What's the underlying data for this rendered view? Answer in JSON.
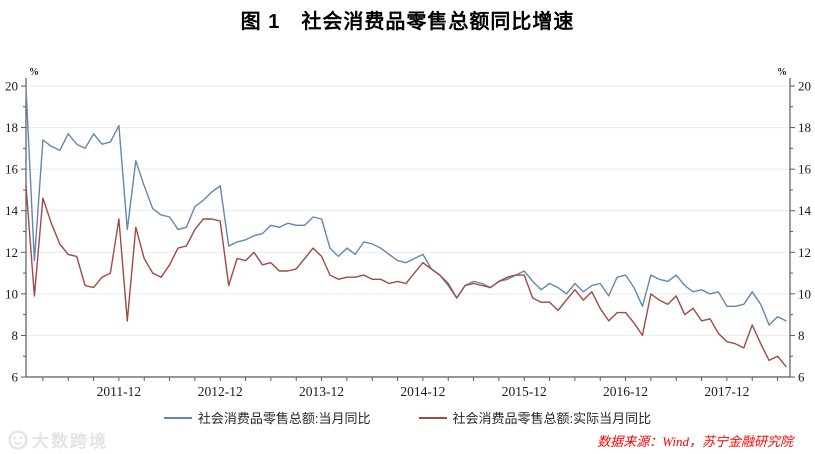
{
  "title": "图 1　社会消费品零售总额同比增速",
  "source_note": "数据来源：Wind，苏宁金融研究院",
  "watermark": {
    "text": "大数跨境"
  },
  "chart_data": {
    "type": "line",
    "title": "图 1 社会消费品零售总额同比增速",
    "xlabel": "",
    "ylabel": "%",
    "unit": "%",
    "ylim": [
      6,
      20
    ],
    "y_ticks": [
      6,
      8,
      10,
      12,
      14,
      16,
      18,
      20
    ],
    "grid": "horizontal",
    "legend_position": "bottom",
    "x_tick_labels": [
      "2011-12",
      "2012-12",
      "2013-12",
      "2014-12",
      "2015-12",
      "2016-12",
      "2017-12"
    ],
    "x_minor_tick_every_months": 3,
    "x": [
      "2011-01",
      "2011-02",
      "2011-03",
      "2011-04",
      "2011-05",
      "2011-06",
      "2011-07",
      "2011-08",
      "2011-09",
      "2011-10",
      "2011-11",
      "2011-12",
      "2012-01",
      "2012-02",
      "2012-03",
      "2012-04",
      "2012-05",
      "2012-06",
      "2012-07",
      "2012-08",
      "2012-09",
      "2012-10",
      "2012-11",
      "2012-12",
      "2013-01",
      "2013-02",
      "2013-03",
      "2013-04",
      "2013-05",
      "2013-06",
      "2013-07",
      "2013-08",
      "2013-09",
      "2013-10",
      "2013-11",
      "2013-12",
      "2014-01",
      "2014-02",
      "2014-03",
      "2014-04",
      "2014-05",
      "2014-06",
      "2014-07",
      "2014-08",
      "2014-09",
      "2014-10",
      "2014-11",
      "2014-12",
      "2015-01",
      "2015-02",
      "2015-03",
      "2015-04",
      "2015-05",
      "2015-06",
      "2015-07",
      "2015-08",
      "2015-09",
      "2015-10",
      "2015-11",
      "2015-12",
      "2016-01",
      "2016-02",
      "2016-03",
      "2016-04",
      "2016-05",
      "2016-06",
      "2016-07",
      "2016-08",
      "2016-09",
      "2016-10",
      "2016-11",
      "2016-12",
      "2017-01",
      "2017-02",
      "2017-03",
      "2017-04",
      "2017-05",
      "2017-06",
      "2017-07",
      "2017-08",
      "2017-09",
      "2017-10",
      "2017-11",
      "2017-12",
      "2018-01",
      "2018-02",
      "2018-03",
      "2018-04",
      "2018-05",
      "2018-06",
      "2018-07"
    ],
    "series": [
      {
        "name": "社会消费品零售总额:当月同比",
        "color": "#6287B0",
        "values": [
          19.9,
          11.6,
          17.4,
          17.1,
          16.9,
          17.7,
          17.2,
          17.0,
          17.7,
          17.2,
          17.3,
          18.1,
          13.1,
          16.4,
          15.2,
          14.1,
          13.8,
          13.7,
          13.1,
          13.2,
          14.2,
          14.5,
          14.9,
          15.2,
          12.3,
          12.5,
          12.6,
          12.8,
          12.9,
          13.3,
          13.2,
          13.4,
          13.3,
          13.3,
          13.7,
          13.6,
          12.2,
          11.8,
          12.2,
          11.9,
          12.5,
          12.4,
          12.2,
          11.9,
          11.6,
          11.5,
          11.7,
          11.9,
          11.2,
          10.9,
          10.4,
          9.8,
          10.4,
          10.6,
          10.5,
          10.3,
          10.6,
          10.7,
          10.9,
          11.1,
          10.6,
          10.2,
          10.5,
          10.3,
          10.0,
          10.5,
          10.1,
          10.4,
          10.5,
          9.9,
          10.8,
          10.9,
          10.3,
          9.4,
          10.9,
          10.7,
          10.6,
          10.9,
          10.4,
          10.1,
          10.2,
          10.0,
          10.1,
          9.4,
          9.4,
          9.5,
          10.1,
          9.5,
          8.5,
          8.9,
          8.7
        ]
      },
      {
        "name": "社会消费品零售总额:实际当月同比",
        "color": "#A04A44",
        "values": [
          15.2,
          9.9,
          14.6,
          13.4,
          12.4,
          11.9,
          11.8,
          10.4,
          10.3,
          10.8,
          11.0,
          13.6,
          8.7,
          13.2,
          11.7,
          11.0,
          10.8,
          11.4,
          12.2,
          12.3,
          13.1,
          13.6,
          13.6,
          13.5,
          10.4,
          11.7,
          11.6,
          12.0,
          11.4,
          11.5,
          11.1,
          11.1,
          11.2,
          11.7,
          12.2,
          11.8,
          10.9,
          10.7,
          10.8,
          10.8,
          10.9,
          10.7,
          10.7,
          10.5,
          10.6,
          10.5,
          11.0,
          11.5,
          11.2,
          10.9,
          10.5,
          9.8,
          10.4,
          10.5,
          10.4,
          10.3,
          10.6,
          10.8,
          10.9,
          10.9,
          9.8,
          9.6,
          9.6,
          9.2,
          9.7,
          10.2,
          9.7,
          10.1,
          9.3,
          8.7,
          9.1,
          9.1,
          8.6,
          8.0,
          10.0,
          9.7,
          9.5,
          9.9,
          9.0,
          9.3,
          8.7,
          8.8,
          8.1,
          7.7,
          7.6,
          7.4,
          8.5,
          7.6,
          6.8,
          7.0,
          6.5
        ]
      }
    ]
  }
}
